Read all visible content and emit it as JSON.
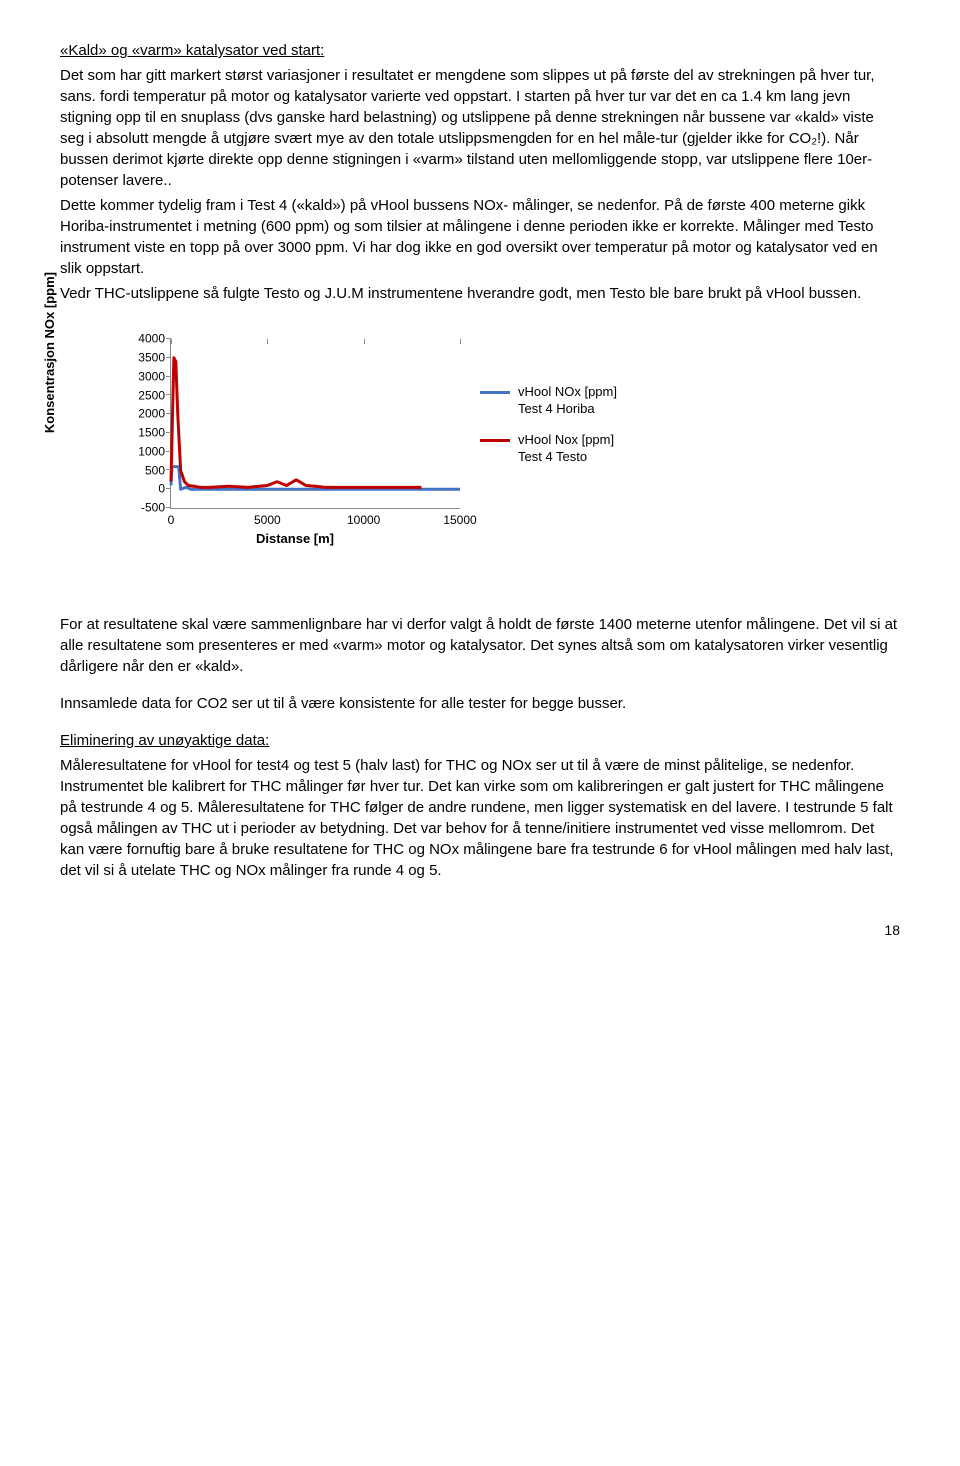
{
  "heading1": "«Kald» og «varm» katalysator ved start:",
  "para1": "Det som har gitt markert størst variasjoner i resultatet er mengdene som slippes ut på første del av strekningen på hver tur, sans. fordi temperatur på motor og katalysator varierte ved oppstart. I starten på hver tur var det en ca 1.4 km lang jevn stigning opp til en snuplass (dvs ganske hard belastning) og utslippene på denne strekningen når bussene var «kald» viste seg i absolutt mengde å utgjøre svært mye av den totale utslippsmengden for en hel måle-tur (gjelder ikke for CO₂!). Når bussen derimot kjørte direkte opp denne stigningen i «varm» tilstand uten mellomliggende stopp, var utslippene flere 10er-potenser lavere..",
  "para2": "Dette kommer tydelig fram i Test 4 («kald») på vHool bussens NOx- målinger, se nedenfor. På de første 400 meterne gikk Horiba-instrumentet i metning (600 ppm) og som tilsier at målingene i denne perioden ikke er korrekte. Målinger med Testo instrument viste en topp på over 3000 ppm. Vi har dog ikke en god oversikt over temperatur på motor og katalysator ved en slik oppstart.",
  "para3": "Vedr THC-utslippene så fulgte Testo og J.U.M instrumentene hverandre godt, men Testo ble bare brukt på vHool bussen.",
  "chart": {
    "type": "line",
    "ylabel": "Konsentrasjon NOx [ppm]",
    "xlabel": "Distanse [m]",
    "ylim": [
      -500,
      4000
    ],
    "xlim": [
      0,
      15000
    ],
    "yticks": [
      -500,
      0,
      500,
      1000,
      1500,
      2000,
      2500,
      3000,
      3500,
      4000
    ],
    "xticks": [
      0,
      5000,
      10000,
      15000
    ],
    "background_color": "#ffffff",
    "axis_color": "#888888",
    "series": [
      {
        "name": "vHool NOx [ppm] Test 4 Horiba",
        "color": "#4472c4",
        "width": 3,
        "points": [
          [
            0,
            100
          ],
          [
            50,
            600
          ],
          [
            400,
            600
          ],
          [
            500,
            0
          ],
          [
            800,
            50
          ],
          [
            1000,
            0
          ],
          [
            15000,
            0
          ]
        ]
      },
      {
        "name": "vHool Nox [ppm] Test 4 Testo",
        "color": "#c00000",
        "width": 3,
        "points": [
          [
            0,
            200
          ],
          [
            80,
            2000
          ],
          [
            150,
            3500
          ],
          [
            250,
            3400
          ],
          [
            350,
            2000
          ],
          [
            500,
            500
          ],
          [
            700,
            200
          ],
          [
            900,
            100
          ],
          [
            1200,
            80
          ],
          [
            1500,
            50
          ],
          [
            2000,
            50
          ],
          [
            3000,
            80
          ],
          [
            4000,
            50
          ],
          [
            5000,
            100
          ],
          [
            5500,
            200
          ],
          [
            6000,
            100
          ],
          [
            6500,
            250
          ],
          [
            7000,
            100
          ],
          [
            7500,
            80
          ],
          [
            8000,
            50
          ],
          [
            9000,
            50
          ],
          [
            10000,
            50
          ],
          [
            11000,
            50
          ],
          [
            12000,
            50
          ],
          [
            13000,
            50
          ]
        ]
      }
    ],
    "legend": [
      {
        "label1": "vHool NOx [ppm]",
        "label2": "Test 4 Horiba",
        "color": "#4472c4"
      },
      {
        "label1": "vHool Nox [ppm]",
        "label2": "Test 4 Testo",
        "color": "#c00000"
      }
    ]
  },
  "para4": "For at resultatene skal være sammenlignbare har vi derfor valgt å holdt de første 1400 meterne utenfor målingene. Det vil si at alle resultatene som presenteres er med «varm» motor og katalysator. Det synes altså som om katalysatoren virker vesentlig dårligere når den er «kald».",
  "para5": "Innsamlede data for CO2 ser ut til å være konsistente for alle tester for begge busser.",
  "heading2": "Eliminering av unøyaktige data:",
  "para6": "Måleresultatene for vHool for test4 og test 5 (halv last) for THC og NOx ser ut til å være de minst pålitelige, se nedenfor.  Instrumentet ble kalibrert for THC målinger før hver tur. Det kan virke som om kalibreringen er galt justert for THC målingene på testrunde 4 og 5. Måleresultatene for THC følger de andre rundene, men ligger systematisk en del lavere. I testrunde 5 falt også målingen av THC ut i perioder av betydning. Det var behov for å tenne/initiere instrumentet ved visse mellomrom. Det kan være fornuftig bare å bruke resultatene for THC og NOx målingene bare fra testrunde 6 for vHool målingen med halv last, det vil si å utelate THC og NOx målinger fra runde 4 og 5.",
  "page_number": "18"
}
